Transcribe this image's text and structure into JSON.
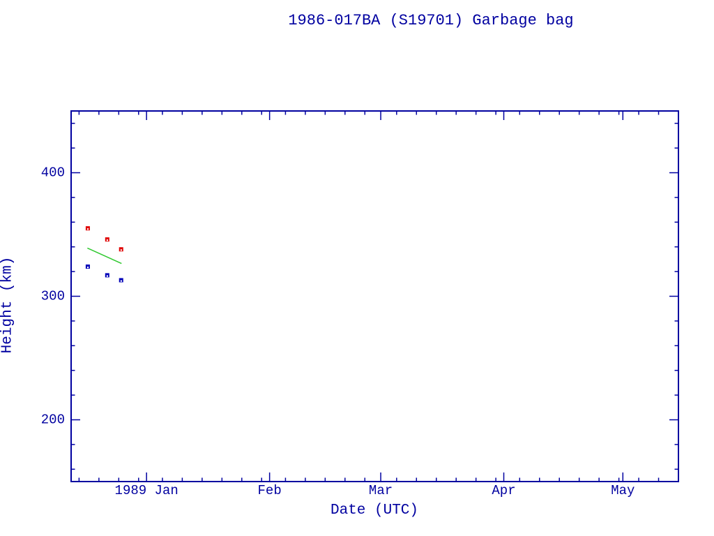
{
  "window": {
    "background_color": "#ffffff"
  },
  "chart_data": {
    "type": "scatter",
    "title": "1986-017BA (S19701) Garbage bag",
    "xlabel": "Date (UTC)",
    "ylabel": "Height (km)",
    "axis_color": "#0000a0",
    "grid": false,
    "legend": false,
    "x_unit": "days relative to 1989 Jan 1 (UTC)",
    "xlim_days": [
      -19,
      134
    ],
    "ylim": [
      150,
      450
    ],
    "x_major_ticks": [
      {
        "day": 0,
        "label": "1989 Jan"
      },
      {
        "day": 31,
        "label": "Feb"
      },
      {
        "day": 59,
        "label": "Mar"
      },
      {
        "day": 90,
        "label": "Apr"
      },
      {
        "day": 120,
        "label": "May"
      }
    ],
    "x_minor_ticks_days": [
      -17,
      -12,
      -7,
      -2,
      4,
      9,
      14,
      19,
      24,
      29,
      35,
      40,
      45,
      50,
      55,
      63,
      68,
      73,
      78,
      83,
      88,
      94,
      99,
      104,
      109,
      114,
      119,
      124,
      129
    ],
    "y_major_ticks": [
      {
        "value": 200,
        "label": "200"
      },
      {
        "value": 300,
        "label": "300"
      },
      {
        "value": 400,
        "label": "400"
      }
    ],
    "y_minor_ticks": [
      160,
      180,
      220,
      240,
      260,
      280,
      320,
      340,
      360,
      380,
      420,
      440
    ],
    "series": [
      {
        "name": "red-squares",
        "type": "scatter",
        "marker": "filled-square",
        "color": "#e00000",
        "points": [
          {
            "date": "1988 Dec 17",
            "x_days": -14.8,
            "height_km": 355
          },
          {
            "date": "1988 Dec 22",
            "x_days": -9.9,
            "height_km": 346
          },
          {
            "date": "1988 Dec 26",
            "x_days": -6.4,
            "height_km": 338
          }
        ]
      },
      {
        "name": "blue-squares",
        "type": "scatter",
        "marker": "filled-square",
        "color": "#0000b8",
        "points": [
          {
            "date": "1988 Dec 17",
            "x_days": -14.8,
            "height_km": 324
          },
          {
            "date": "1988 Dec 22",
            "x_days": -9.9,
            "height_km": 317
          },
          {
            "date": "1988 Dec 26",
            "x_days": -6.4,
            "height_km": 313
          }
        ]
      },
      {
        "name": "green-trend-line",
        "type": "line",
        "color": "#2ec82e",
        "points": [
          {
            "x_days": -14.9,
            "height_km": 339
          },
          {
            "x_days": -6.3,
            "height_km": 326.5
          }
        ]
      }
    ]
  }
}
